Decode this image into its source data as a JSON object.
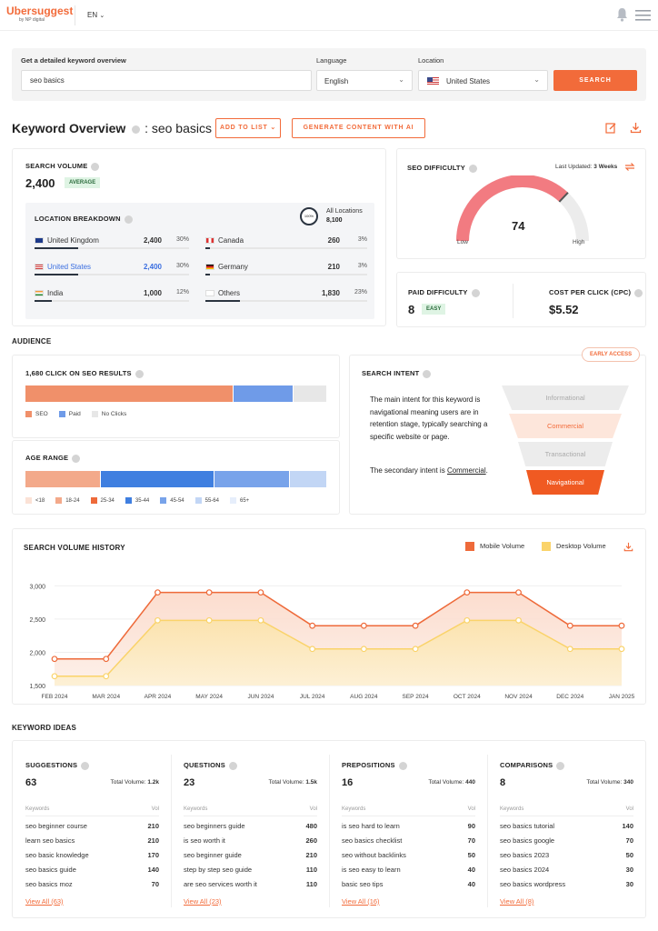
{
  "header": {
    "logo": "Ubersuggest",
    "logo_sub": "by NP digital",
    "language": "EN",
    "icons": [
      "bell-icon",
      "menu-icon"
    ]
  },
  "search": {
    "title": "Get a detailed keyword overview",
    "keyword": "seo basics",
    "language_label": "Language",
    "language_value": "English",
    "location_label": "Location",
    "location_value": "United States",
    "button": "SEARCH"
  },
  "overview": {
    "title": "Keyword Overview",
    "keyword": ": seo basics",
    "add_to_list": "ADD TO LIST",
    "generate": "GENERATE CONTENT WITH AI"
  },
  "volume": {
    "label": "SEARCH VOLUME",
    "value": "2,400",
    "badge": "AVERAGE",
    "breakdown_label": "LOCATION BREAKDOWN",
    "all_locations_pct": "100%",
    "all_locations_label": "All Locations",
    "all_locations_value": "8,100",
    "locations": [
      {
        "name": "United Kingdom",
        "value": "2,400",
        "pct": "30%",
        "fraction": 0.3
      },
      {
        "name": "Canada",
        "value": "260",
        "pct": "3%",
        "fraction": 0.03
      },
      {
        "name": "United States",
        "value": "2,400",
        "pct": "30%",
        "fraction": 0.3
      },
      {
        "name": "Germany",
        "value": "210",
        "pct": "3%",
        "fraction": 0.03
      },
      {
        "name": "India",
        "value": "1,000",
        "pct": "12%",
        "fraction": 0.12
      },
      {
        "name": "Others",
        "value": "1,830",
        "pct": "23%",
        "fraction": 0.23
      }
    ]
  },
  "seo_difficulty": {
    "label": "SEO DIFFICULTY",
    "last_updated_label": "Last Updated:",
    "last_updated_value": "3 Weeks",
    "value": "74",
    "fraction": 0.74,
    "low": "Low",
    "high": "High"
  },
  "paid": {
    "label": "PAID DIFFICULTY",
    "value": "8",
    "badge": "EASY",
    "cpc_label": "COST PER CLICK (CPC)",
    "cpc_value": "$5.52"
  },
  "audience": {
    "title": "AUDIENCE",
    "clicks_label": "1,680 CLICK ON SEO RESULTS",
    "clicks": [
      {
        "name": "SEO",
        "fraction": 0.69,
        "color": "#f0906a"
      },
      {
        "name": "Paid",
        "fraction": 0.2,
        "color": "#6f9be8"
      },
      {
        "name": "No Clicks",
        "fraction": 0.11,
        "color": "#e7e7e7"
      }
    ],
    "age_label": "AGE RANGE",
    "ages": [
      {
        "name": "<18",
        "fraction": 0.0,
        "color": "#fbe2d6"
      },
      {
        "name": "18-24",
        "fraction": 0.25,
        "color": "#f3a98a"
      },
      {
        "name": "25-34",
        "fraction": 0.0,
        "color": "#ee6a3a"
      },
      {
        "name": "35-44",
        "fraction": 0.375,
        "color": "#3f7fe0"
      },
      {
        "name": "45-54",
        "fraction": 0.25,
        "color": "#78a3ea"
      },
      {
        "name": "55-64",
        "fraction": 0.125,
        "color": "#c2d6f5"
      },
      {
        "name": "65+",
        "fraction": 0.0,
        "color": "#e6eefb"
      }
    ]
  },
  "intent": {
    "title": "SEARCH INTENT",
    "early_access": "EARLY ACCESS",
    "text1": "The main intent for this keyword is navigational meaning users are in retention stage, typically searching a specific website or page.",
    "text2_prefix": "The secondary intent is",
    "text2_link": "Commercial",
    "text2_suffix": ".",
    "funnel": [
      "Informational",
      "Commercial",
      "Transactional",
      "Navigational"
    ]
  },
  "history": {
    "title": "SEARCH VOLUME HISTORY",
    "legend_mobile": "Mobile Volume",
    "legend_desktop": "Desktop Volume",
    "colors": {
      "mobile": "#ee6a3a",
      "desktop": "#fad36a"
    }
  },
  "chart_data": {
    "type": "line",
    "x": [
      "FEB 2024",
      "MAR 2024",
      "APR 2024",
      "MAY 2024",
      "JUN 2024",
      "JUL 2024",
      "AUG 2024",
      "SEP 2024",
      "OCT 2024",
      "NOV 2024",
      "DEC 2024",
      "JAN 2025"
    ],
    "series": [
      {
        "name": "Mobile Volume",
        "values": [
          1900,
          1900,
          2900,
          2900,
          2900,
          2400,
          2400,
          2400,
          2900,
          2900,
          2400,
          2400
        ]
      },
      {
        "name": "Desktop Volume",
        "values": [
          1640,
          1640,
          2480,
          2480,
          2480,
          2050,
          2050,
          2050,
          2480,
          2480,
          2050,
          2050
        ]
      }
    ],
    "yticks": [
      "3,000",
      "2,500",
      "2,000",
      "1,500"
    ],
    "ylim": [
      1500,
      3100
    ],
    "legend": "top-right",
    "grid": true
  },
  "ideas": {
    "title": "KEYWORD IDEAS",
    "keywords_col": "Keywords",
    "vol_col": "Vol",
    "total_label": "Total Volume:",
    "columns": [
      {
        "title": "SUGGESTIONS",
        "count": "63",
        "total": "1.2k",
        "rows": [
          [
            "seo beginner course",
            "210"
          ],
          [
            "learn seo basics",
            "210"
          ],
          [
            "seo basic knowledge",
            "170"
          ],
          [
            "seo basics guide",
            "140"
          ],
          [
            "seo basics moz",
            "70"
          ]
        ],
        "view_all": "View All (63)"
      },
      {
        "title": "QUESTIONS",
        "count": "23",
        "total": "1.5k",
        "rows": [
          [
            "seo beginners guide",
            "480"
          ],
          [
            "is seo worth it",
            "260"
          ],
          [
            "seo beginner guide",
            "210"
          ],
          [
            "step by step seo guide",
            "110"
          ],
          [
            "are seo services worth it",
            "110"
          ]
        ],
        "view_all": "View All (23)"
      },
      {
        "title": "PREPOSITIONS",
        "count": "16",
        "total": "440",
        "rows": [
          [
            "is seo hard to learn",
            "90"
          ],
          [
            "seo basics checklist",
            "70"
          ],
          [
            "seo without backlinks",
            "50"
          ],
          [
            "is seo easy to learn",
            "40"
          ],
          [
            "basic seo tips",
            "40"
          ]
        ],
        "view_all": "View All (16)"
      },
      {
        "title": "COMPARISONS",
        "count": "8",
        "total": "340",
        "rows": [
          [
            "seo basics tutorial",
            "140"
          ],
          [
            "seo basics google",
            "70"
          ],
          [
            "seo basics 2023",
            "50"
          ],
          [
            "seo basics 2024",
            "30"
          ],
          [
            "seo basics wordpress",
            "30"
          ]
        ],
        "view_all": "View All (8)"
      }
    ]
  }
}
